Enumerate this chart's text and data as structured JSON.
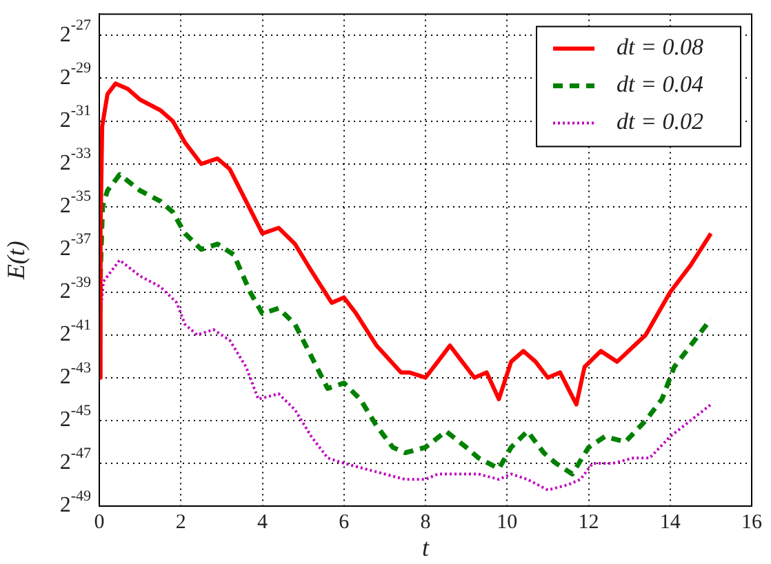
{
  "chart_data": {
    "type": "line",
    "xlabel": "t",
    "ylabel": "E(t)",
    "log": "y",
    "grid": true,
    "legend": "top right",
    "xlim": [
      0,
      16
    ],
    "xticks": [
      0,
      2,
      4,
      6,
      8,
      10,
      12,
      14,
      16
    ],
    "ylim": [
      1.7764e-15,
      1.4901e-08
    ],
    "yticks": [
      {
        "value": 1.7764e-15,
        "label": "2$^{-49}$"
      },
      {
        "value": 7.1054e-15,
        "label": "2$^{-47}$"
      },
      {
        "value": 2.8422e-14,
        "label": "2$^{-45}$"
      },
      {
        "value": 1.1369e-13,
        "label": "2$^{-43}$"
      },
      {
        "value": 4.5475e-13,
        "label": "2$^{-41}$"
      },
      {
        "value": 1.819e-12,
        "label": "2$^{-39}$"
      },
      {
        "value": 7.276e-12,
        "label": "2$^{-37}$"
      },
      {
        "value": 2.9104e-11,
        "label": "2$^{-35}$"
      },
      {
        "value": 1.1642e-10,
        "label": "2$^{-33}$"
      },
      {
        "value": 4.6566e-10,
        "label": "2$^{-31}$"
      },
      {
        "value": 1.8626e-09,
        "label": "2$^{-29}$"
      },
      {
        "value": 7.4506e-09,
        "label": "2$^{-27}$"
      }
    ],
    "series": [
      {
        "name": "dt = 0.08",
        "color": "#ff0000",
        "line_style": "solid",
        "x": [
          0,
          0.03,
          0.07,
          0.2,
          0.4,
          0.7,
          1.0,
          1.5,
          1.8,
          2.1,
          2.5,
          2.9,
          3.2,
          3.6,
          4.0,
          4.4,
          4.8,
          5.2,
          5.7,
          6.0,
          6.3,
          6.8,
          7.4,
          7.6,
          8.0,
          8.3,
          8.6,
          8.9,
          9.2,
          9.5,
          9.8,
          10.1,
          10.4,
          10.7,
          11.0,
          11.3,
          11.7,
          11.9,
          12.3,
          12.7,
          13.4,
          14.0,
          14.5,
          15.0
        ],
        "values": [
          1.14e-13,
          1.46e-11,
          3.92e-10,
          1.11e-09,
          1.57e-09,
          1.32e-09,
          9.31e-10,
          6.59e-10,
          4.66e-10,
          2.33e-10,
          1.16e-10,
          1.38e-10,
          9.79e-11,
          3.46e-11,
          1.22e-11,
          1.46e-11,
          8.65e-12,
          3.64e-12,
          1.29e-12,
          1.53e-12,
          9.09e-13,
          3.22e-13,
          1.35e-13,
          1.35e-13,
          1.14e-13,
          1.91e-13,
          3.22e-13,
          1.91e-13,
          1.14e-13,
          1.35e-13,
          5.68e-14,
          1.91e-13,
          2.7e-13,
          1.91e-13,
          1.14e-13,
          1.35e-13,
          4.78e-14,
          1.61e-13,
          2.7e-13,
          1.91e-13,
          4.55e-13,
          1.82e-12,
          4.33e-12,
          1.22e-11
        ]
      },
      {
        "name": "dt = 0.04",
        "color": "#008000",
        "line_style": "dashed",
        "x": [
          0,
          0.03,
          0.08,
          0.2,
          0.5,
          1.0,
          1.5,
          1.8,
          2.1,
          2.5,
          2.9,
          3.3,
          3.7,
          4.0,
          4.4,
          4.8,
          5.2,
          5.6,
          6.0,
          6.4,
          6.8,
          7.2,
          7.5,
          8.0,
          8.5,
          9.0,
          9.3,
          9.8,
          10.1,
          10.5,
          10.9,
          11.2,
          11.6,
          12.0,
          12.4,
          12.9,
          13.4,
          13.8,
          14.1,
          15.0
        ],
        "values": [
          1.14e-13,
          3.64e-12,
          2.91e-11,
          4.89e-11,
          8.23e-11,
          4.89e-11,
          3.46e-11,
          2.45e-11,
          1.22e-11,
          7.28e-12,
          8.65e-12,
          6.12e-12,
          1.82e-12,
          9.09e-13,
          1.08e-12,
          6.43e-13,
          2.27e-13,
          8.04e-14,
          9.56e-14,
          5.68e-14,
          2.39e-14,
          1.19e-14,
          1e-14,
          1.19e-14,
          2.01e-14,
          1.19e-14,
          8.45e-15,
          5.97e-15,
          1.19e-14,
          2.01e-14,
          1e-14,
          7.11e-15,
          5.02e-15,
          1.19e-14,
          1.69e-14,
          1.42e-14,
          2.84e-14,
          5.68e-14,
          1.61e-13,
          7.65e-13
        ]
      },
      {
        "name": "dt = 0.02",
        "color": "#bf00bf",
        "line_style": "dotted",
        "x": [
          0,
          0.03,
          0.1,
          0.5,
          1.0,
          1.5,
          1.9,
          2.1,
          2.4,
          2.8,
          3.2,
          3.6,
          3.9,
          4.4,
          4.8,
          5.2,
          5.6,
          6.0,
          6.5,
          7.0,
          7.5,
          8.0,
          8.3,
          8.8,
          9.3,
          9.8,
          10.1,
          10.5,
          11.0,
          11.5,
          11.8,
          12.1,
          12.6,
          13.1,
          13.5,
          14.0,
          14.5,
          15.0
        ],
        "values": [
          1.14e-13,
          9.09e-13,
          2.57e-12,
          5.14e-12,
          3.06e-12,
          2.16e-12,
          1.29e-12,
          6.43e-13,
          4.55e-13,
          5.41e-13,
          3.82e-13,
          1.61e-13,
          5.68e-14,
          6.76e-14,
          4.02e-14,
          1.69e-14,
          8.45e-15,
          7.11e-15,
          5.97e-15,
          5.02e-15,
          4.22e-15,
          4.22e-15,
          5.02e-15,
          5.02e-15,
          5.02e-15,
          4.22e-15,
          5.02e-15,
          4.22e-15,
          2.99e-15,
          3.55e-15,
          4.22e-15,
          7.11e-15,
          7.11e-15,
          8.45e-15,
          8.45e-15,
          1.69e-14,
          2.84e-14,
          4.78e-14
        ]
      }
    ]
  }
}
